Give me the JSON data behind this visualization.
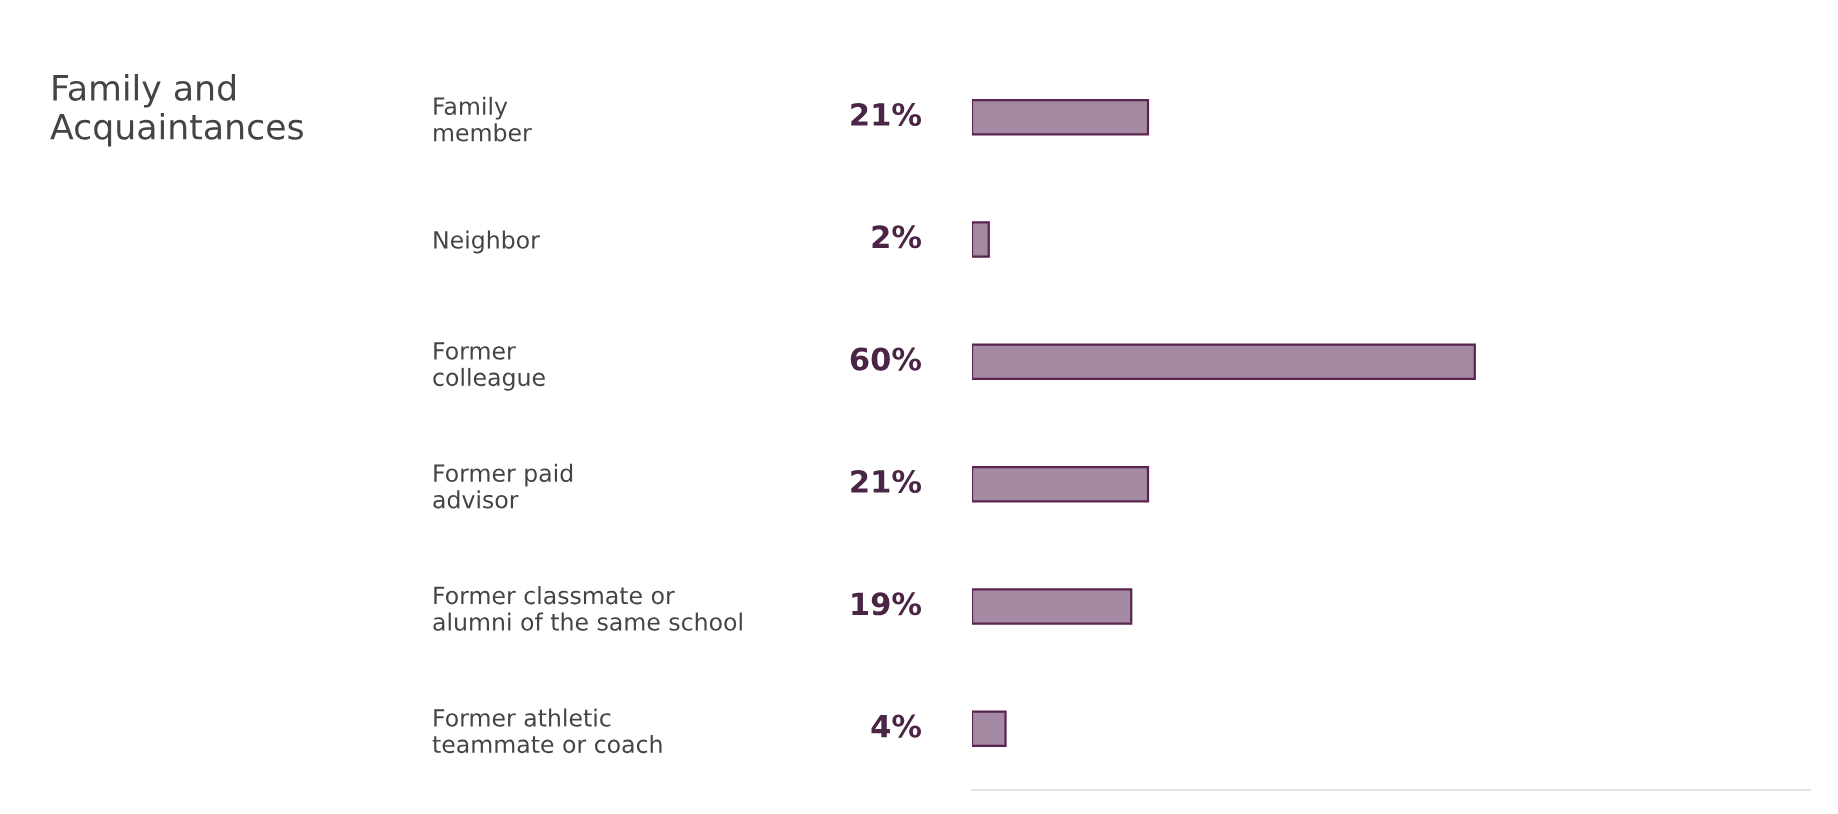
{
  "chart_data": {
    "type": "bar",
    "orientation": "horizontal",
    "title": "Family and\nAcquaintances",
    "categories": [
      "Family\nmember",
      "Neighbor",
      "Former\ncolleague",
      "Former paid\nadvisor",
      "Former classmate or\nalumni of the same school",
      "Former athletic\nteammate or coach"
    ],
    "values": [
      21,
      2,
      60,
      21,
      19,
      4
    ],
    "value_labels": [
      "21%",
      "2%",
      "60%",
      "21%",
      "19%",
      "4%"
    ],
    "color": "#a58aa3",
    "xlim": [
      0,
      100
    ],
    "tick_labels": "y",
    "grid": false,
    "legend": false
  }
}
